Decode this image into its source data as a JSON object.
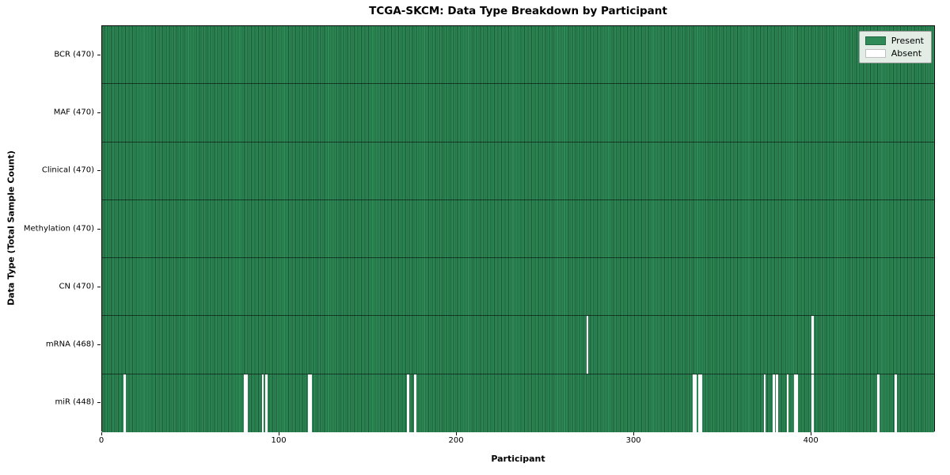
{
  "title": "TCGA-SKCM: Data Type Breakdown by Participant",
  "xlabel": "Participant",
  "ylabel": "Data Type (Total Sample Count)",
  "legend": {
    "present_label": "Present",
    "absent_label": "Absent"
  },
  "colors": {
    "present": "#2e8b57",
    "absent": "#ffffff",
    "cell_edge": "rgba(8,36,22,0.5)"
  },
  "chart_data": {
    "type": "heatmap",
    "x_range": [
      0,
      470
    ],
    "n_participants": 470,
    "x_ticks": [
      0,
      100,
      200,
      300,
      400
    ],
    "rows": [
      {
        "label": "BCR (470)",
        "present_count": 470,
        "absent_participants": []
      },
      {
        "label": "MAF (470)",
        "present_count": 470,
        "absent_participants": []
      },
      {
        "label": "Clinical (470)",
        "present_count": 470,
        "absent_participants": []
      },
      {
        "label": "Methylation (470)",
        "present_count": 470,
        "absent_participants": []
      },
      {
        "label": "CN (470)",
        "present_count": 470,
        "absent_participants": []
      },
      {
        "label": "mRNA (468)",
        "present_count": 468,
        "absent_participants": [
          273,
          400
        ]
      },
      {
        "label": "miR (448)",
        "present_count": 448,
        "absent_participants": [
          12,
          80,
          81,
          90,
          92,
          116,
          117,
          172,
          176,
          333,
          334,
          336,
          337,
          373,
          378,
          380,
          386,
          390,
          391,
          400,
          437,
          447
        ]
      }
    ]
  }
}
